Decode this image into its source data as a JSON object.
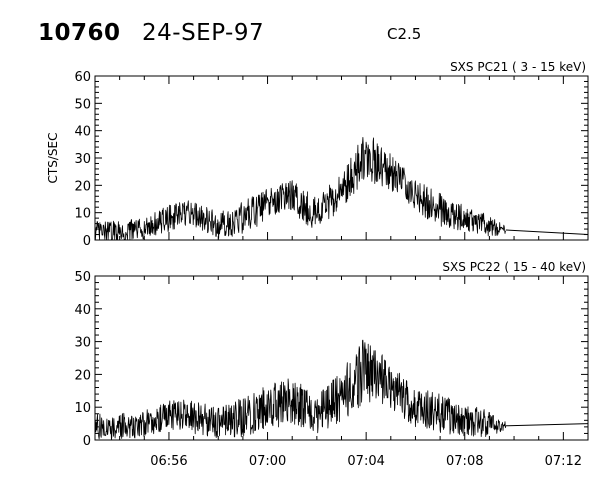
{
  "header": {
    "event_number": "10760",
    "date": "24-SEP-97",
    "goes_class": "C2.5"
  },
  "chart_data": [
    {
      "type": "line",
      "title": "SXS PC21  (  3 - 15 keV)",
      "xlabel": "",
      "ylabel": "CTS/SEC",
      "x_unit": "UT time",
      "xlim": [
        "06:53",
        "07:13"
      ],
      "ylim": [
        0,
        60
      ],
      "yticks": [
        0,
        10,
        20,
        30,
        40,
        50,
        60
      ],
      "xticks": [
        "06:56",
        "07:00",
        "07:04",
        "07:08",
        "07:12"
      ],
      "show_xtick_labels": false,
      "grid": false,
      "series": [
        {
          "name": "",
          "x": [
            "06:53",
            "06:54",
            "06:55",
            "06:56",
            "06:57",
            "06:58",
            "06:59",
            "07:00",
            "07:01",
            "07:02",
            "07:03",
            "07:04",
            "07:05",
            "07:06",
            "07:07",
            "07:08",
            "07:09",
            "07:10",
            "07:13"
          ],
          "values": [
            3,
            3,
            4,
            8,
            10,
            5,
            8,
            13,
            16,
            9,
            18,
            31,
            25,
            16,
            11,
            8,
            5,
            3,
            2
          ],
          "spread": [
            4,
            4,
            4,
            5,
            5,
            5,
            6,
            6,
            7,
            6,
            7,
            9,
            7,
            6,
            6,
            5,
            4,
            0,
            0
          ],
          "data_gap": [
            "07:09:40",
            "07:13"
          ]
        }
      ]
    },
    {
      "type": "line",
      "title": "SXS PC22  ( 15 - 40 keV)",
      "xlabel": "",
      "ylabel": "",
      "x_unit": "UT time",
      "xlim": [
        "06:53",
        "07:13"
      ],
      "ylim": [
        0,
        50
      ],
      "yticks": [
        0,
        10,
        20,
        30,
        40,
        50
      ],
      "xticks": [
        "06:56",
        "07:00",
        "07:04",
        "07:08",
        "07:12"
      ],
      "show_xtick_labels": true,
      "grid": false,
      "series": [
        {
          "name": "",
          "x": [
            "06:53",
            "06:54",
            "06:55",
            "06:56",
            "06:57",
            "06:58",
            "06:59",
            "07:00",
            "07:01",
            "07:02",
            "07:03",
            "07:04",
            "07:05",
            "07:06",
            "07:07",
            "07:08",
            "07:09",
            "07:10",
            "07:13"
          ],
          "values": [
            4,
            4,
            5,
            8,
            7,
            5,
            7,
            10,
            12,
            8,
            13,
            22,
            16,
            10,
            8,
            6,
            5,
            4,
            5
          ],
          "spread": [
            4,
            4,
            4,
            5,
            5,
            5,
            6,
            7,
            7,
            6,
            8,
            10,
            7,
            6,
            6,
            5,
            4,
            0,
            0
          ],
          "data_gap": [
            "07:09:40",
            "07:13"
          ]
        }
      ]
    }
  ]
}
